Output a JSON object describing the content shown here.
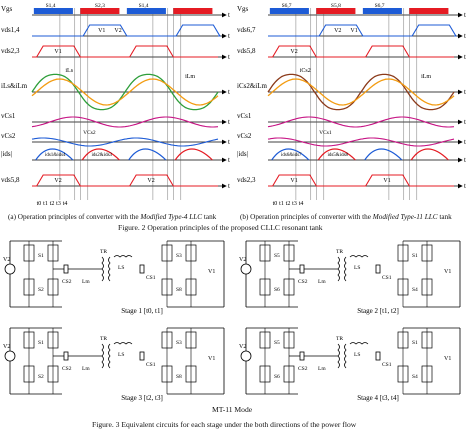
{
  "figure2": {
    "left": {
      "signals": [
        "Vgs",
        "vds1,4",
        "vds2,3",
        "iLs&iLm",
        "vCs1",
        "vCs2",
        "|ids|",
        "vds5,8"
      ],
      "labels": [
        "S1,4",
        "S2,3",
        "S1,4",
        "V1",
        "V1",
        "V2",
        "iLs",
        "iLm",
        "VCs2",
        "ids1&ids4",
        "ids2&ids3",
        "V2",
        "V2"
      ],
      "times": [
        "t0",
        "t1",
        "t2",
        "t3",
        "t4"
      ],
      "axis": "t",
      "caption_pre": "(a) Operation principles of converter with the",
      "caption_em": "Modified Type-4 LLC",
      "caption_post": "tank"
    },
    "right": {
      "signals": [
        "Vgs",
        "vds6,7",
        "vds5,8",
        "iCs2&iLm",
        "vCs1",
        "vCs2",
        "|ids|",
        "vds2,3"
      ],
      "labels": [
        "S6,7",
        "S5,8",
        "S6,7",
        "V2",
        "V2",
        "V1",
        "iCs2",
        "iLm",
        "VCs1",
        "ids6&ids7",
        "ids5&ids8",
        "V1",
        "V1"
      ],
      "times": [
        "t0",
        "t1",
        "t2",
        "t3",
        "t4"
      ],
      "axis": "t",
      "caption_pre": "(b) Operation principles of converter with the",
      "caption_em": "Modified Type-11 LLC",
      "caption_post": "tank"
    },
    "title": "Figure. 2 Operation principles of the proposed CLLC resonant tank"
  },
  "figure3": {
    "circuit_labels": [
      "V2",
      "V1",
      "S1",
      "S2",
      "S3",
      "S4",
      "S5",
      "S6",
      "S7",
      "S8",
      "CS1",
      "CS2",
      "LS",
      "Lm",
      "TR"
    ],
    "stages": [
      "Stage 1 [t0, t1]",
      "Stage 2 [t1, t2]",
      "Stage 3 [t2, t3]",
      "Stage 4 [t3, t4]"
    ],
    "mode": "MT-11 Mode",
    "title": "Figure. 3 Equivalent circuits for each stage under the both directions of the power flow"
  },
  "colors": {
    "gate": "#1d5bd6",
    "gate_alt": "#e51b23",
    "current": "#2e9e3a",
    "current_mag": "#f39c12",
    "current_res": "#8b3a1a",
    "voltage": "#c71585",
    "line": "#000000"
  }
}
